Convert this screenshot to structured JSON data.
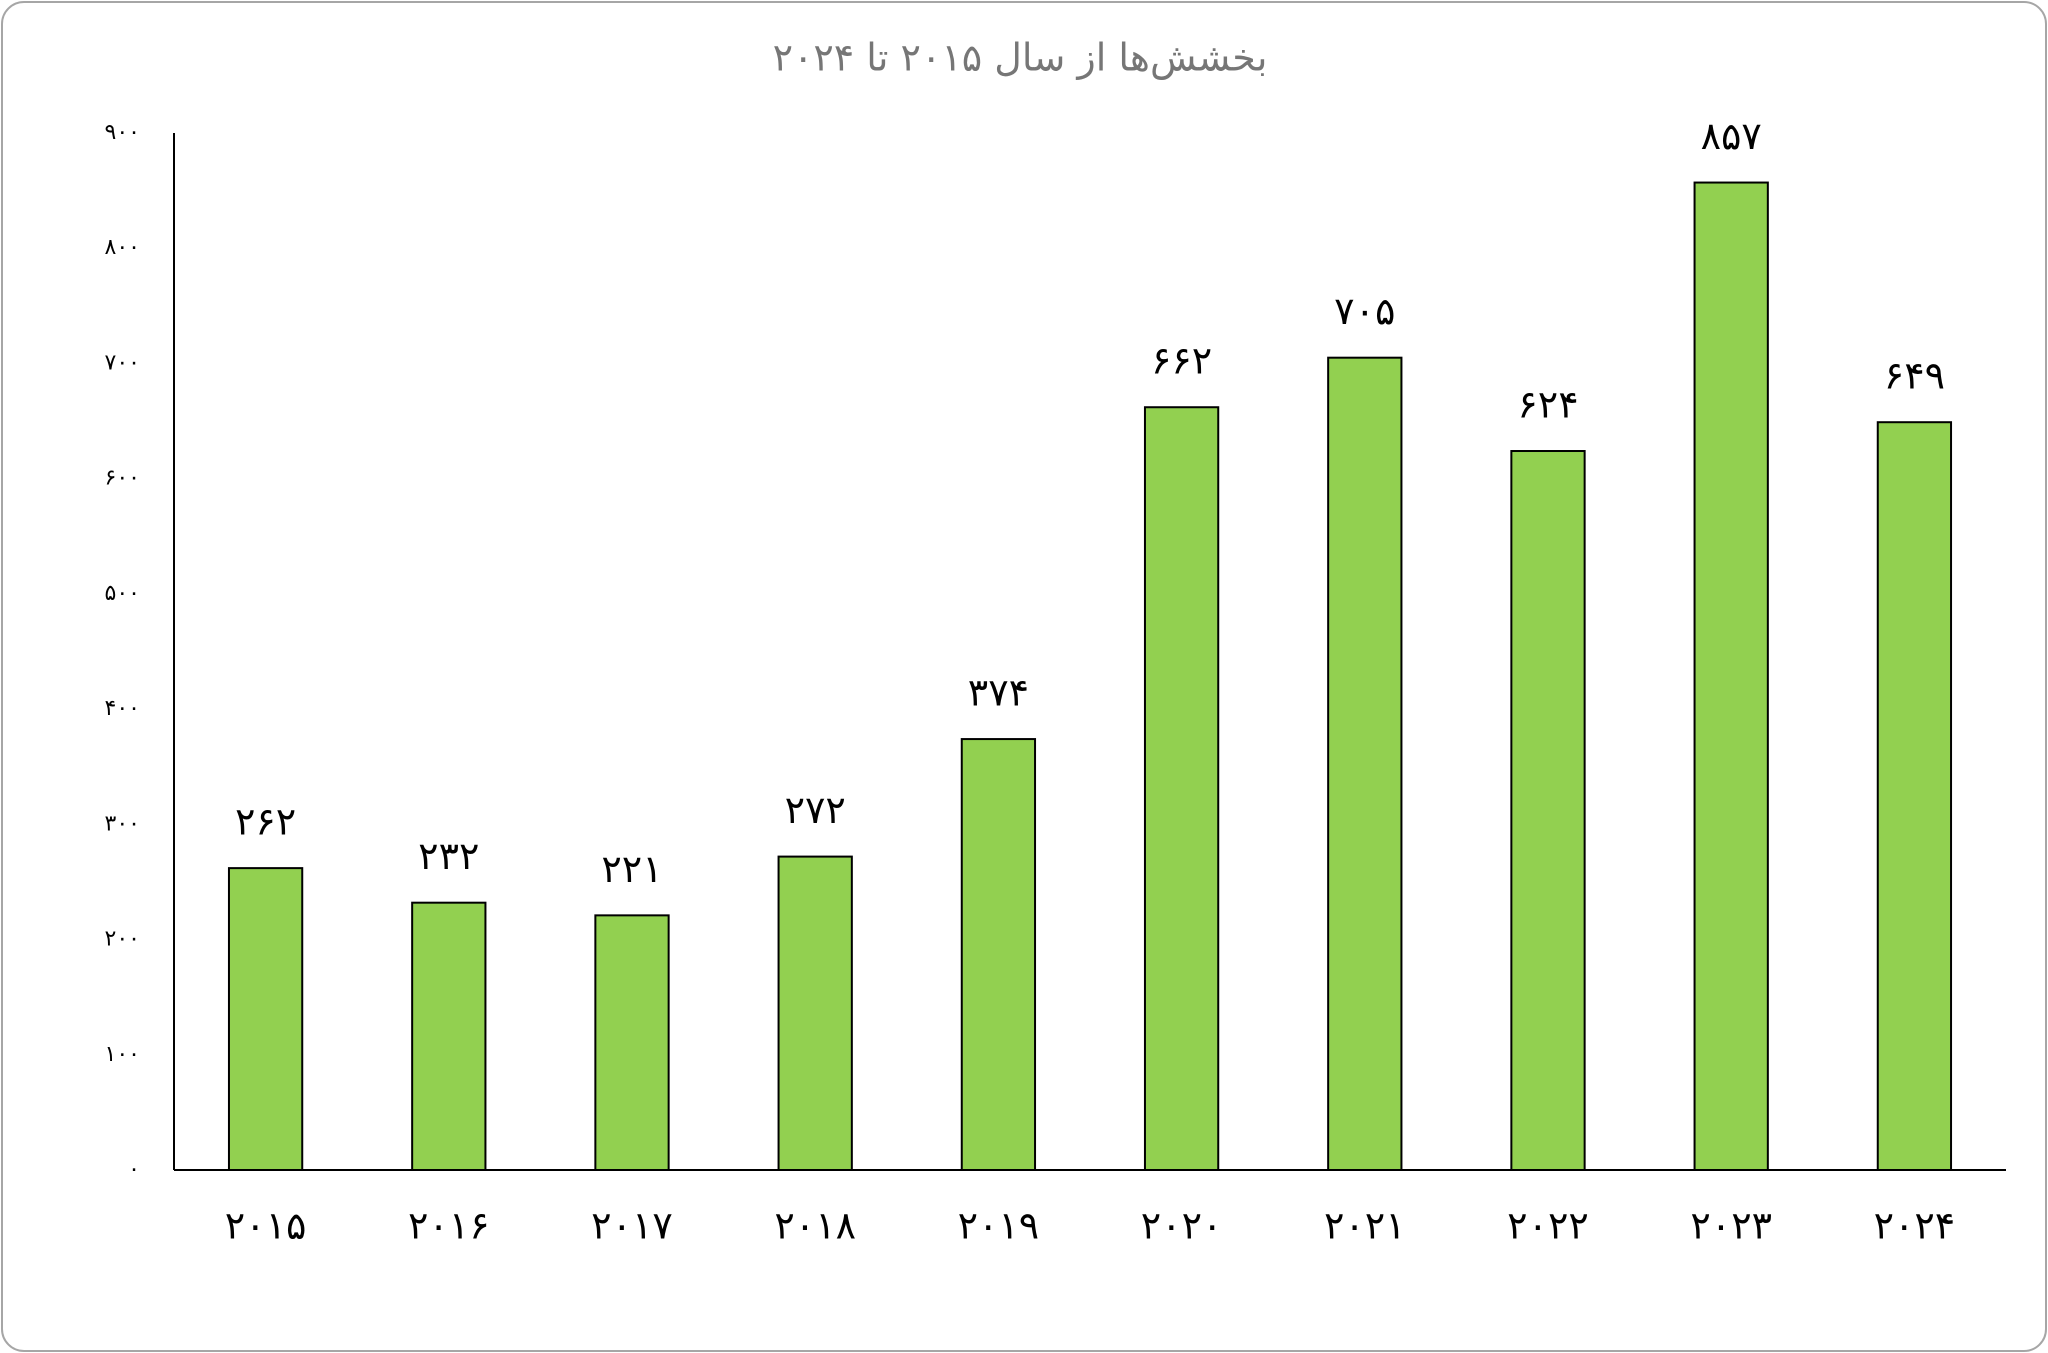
{
  "chart_data": {
    "type": "bar",
    "title": "بخشش‌ها از سال ۲۰۱۵ تا ۲۰۲۴",
    "categories": [
      "۲۰۱۵",
      "۲۰۱۶",
      "۲۰۱۷",
      "۲۰۱۸",
      "۲۰۱۹",
      "۲۰۲۰",
      "۲۰۲۱",
      "۲۰۲۲",
      "۲۰۲۳",
      "۲۰۲۴"
    ],
    "values": [
      262,
      232,
      221,
      272,
      374,
      662,
      705,
      624,
      857,
      649
    ],
    "value_labels": [
      "۲۶۲",
      "۲۳۲",
      "۲۲۱",
      "۲۷۲",
      "۳۷۴",
      "۶۶۲",
      "۷۰۵",
      "۶۲۴",
      "۸۵۷",
      "۶۴۹"
    ],
    "color": "#92d050",
    "ylim": [
      0,
      900
    ],
    "yticks": [
      {
        "value": 0,
        "label": "۰"
      },
      {
        "value": 100,
        "label": "۱۰۰"
      },
      {
        "value": 200,
        "label": "۲۰۰"
      },
      {
        "value": 300,
        "label": "۳۰۰"
      },
      {
        "value": 400,
        "label": "۴۰۰"
      },
      {
        "value": 500,
        "label": "۵۰۰"
      },
      {
        "value": 600,
        "label": "۶۰۰"
      },
      {
        "value": 700,
        "label": "۷۰۰"
      },
      {
        "value": 800,
        "label": "۸۰۰"
      },
      {
        "value": 900,
        "label": "۹۰۰"
      }
    ],
    "grid": false
  }
}
